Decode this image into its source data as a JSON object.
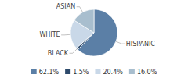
{
  "chart_data": {
    "type": "pie",
    "categories": [
      "HISPANIC",
      "BLACK",
      "WHITE",
      "ASIAN"
    ],
    "values": [
      62.1,
      1.5,
      20.4,
      16.0
    ],
    "value_labels": [
      "62.1%",
      "1.5%",
      "20.4%",
      "16.0%"
    ],
    "colors": [
      "#5b7fa6",
      "#2d4a6b",
      "#c9d8e8",
      "#a8bece"
    ],
    "legend": "bottom"
  }
}
